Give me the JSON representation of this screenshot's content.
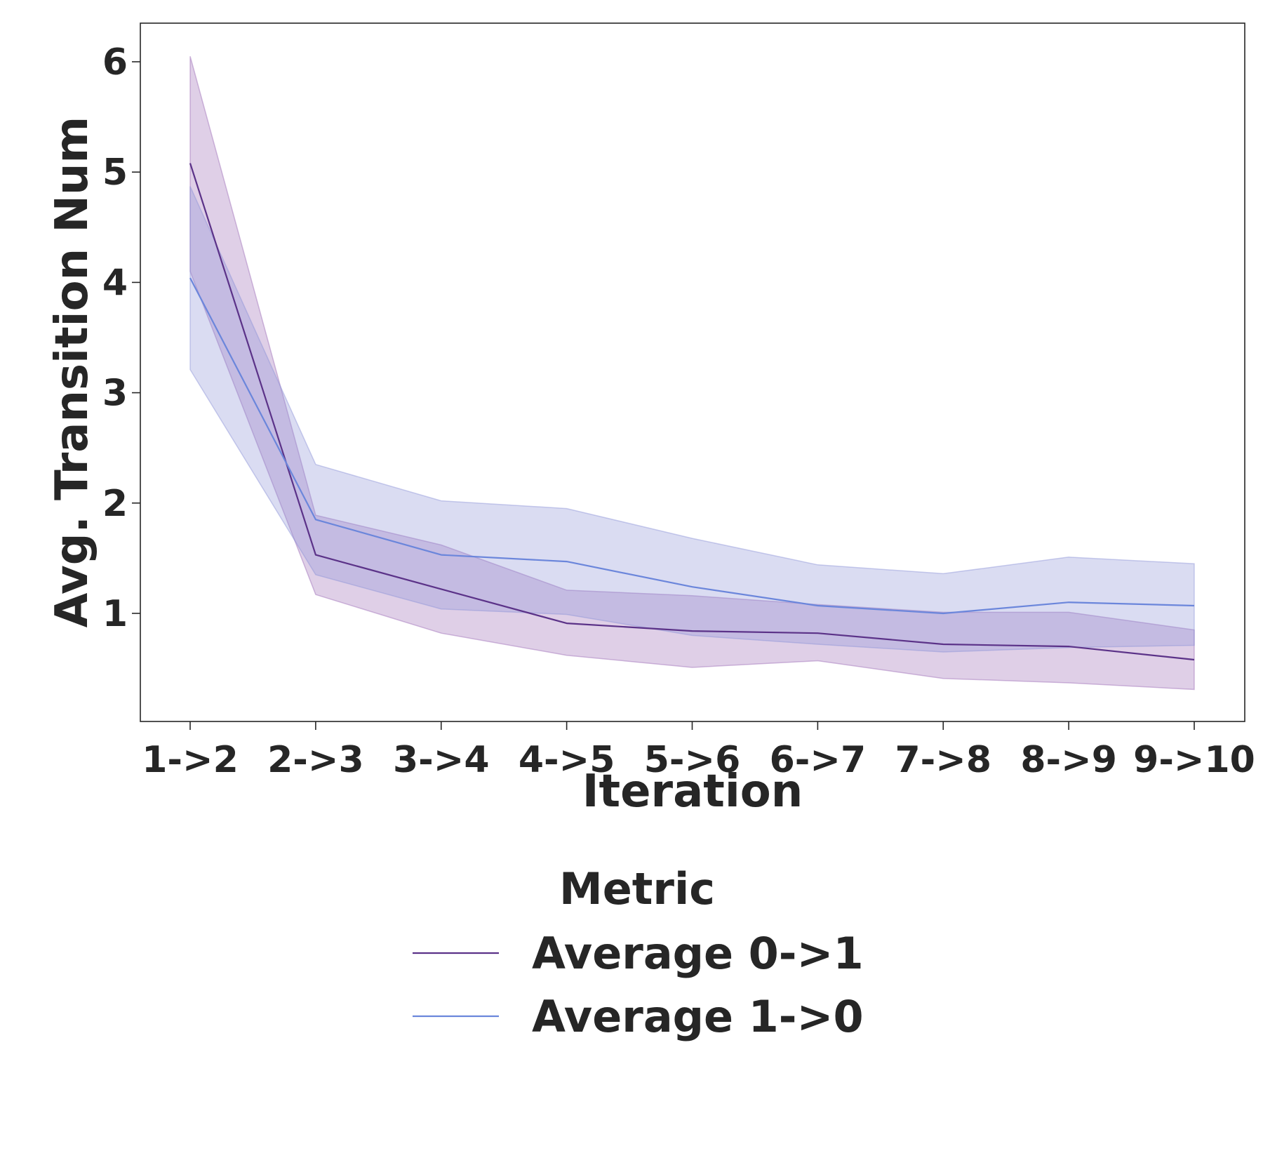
{
  "chart_data": {
    "type": "line",
    "xlabel": "Iteration",
    "ylabel": "Avg. Transition Num",
    "categories": [
      "1->2",
      "2->3",
      "3->4",
      "4->5",
      "5->6",
      "6->7",
      "7->8",
      "8->9",
      "9->10"
    ],
    "yticks": [
      1,
      2,
      3,
      4,
      5,
      6
    ],
    "ylim": [
      0.02,
      6.35
    ],
    "grid": false,
    "legend": {
      "title": "Metric",
      "placement": "below"
    },
    "series": [
      {
        "name": "Average 0->1",
        "color": "#5B3288",
        "band_color": "#9B6BB5",
        "values": [
          5.08,
          1.53,
          1.22,
          0.91,
          0.84,
          0.82,
          0.72,
          0.7,
          0.58
        ],
        "lower": [
          4.1,
          1.17,
          0.82,
          0.62,
          0.51,
          0.57,
          0.41,
          0.37,
          0.31
        ],
        "upper": [
          6.05,
          1.89,
          1.62,
          1.21,
          1.16,
          1.08,
          1.01,
          1.01,
          0.85
        ]
      },
      {
        "name": "Average 1->0",
        "color": "#6B86DB",
        "band_color": "#8B93D6",
        "values": [
          4.04,
          1.85,
          1.53,
          1.47,
          1.24,
          1.07,
          1.0,
          1.1,
          1.07
        ],
        "lower": [
          3.21,
          1.35,
          1.04,
          0.99,
          0.8,
          0.72,
          0.65,
          0.69,
          0.71
        ],
        "upper": [
          4.87,
          2.35,
          2.02,
          1.95,
          1.68,
          1.44,
          1.36,
          1.51,
          1.45
        ]
      }
    ]
  }
}
